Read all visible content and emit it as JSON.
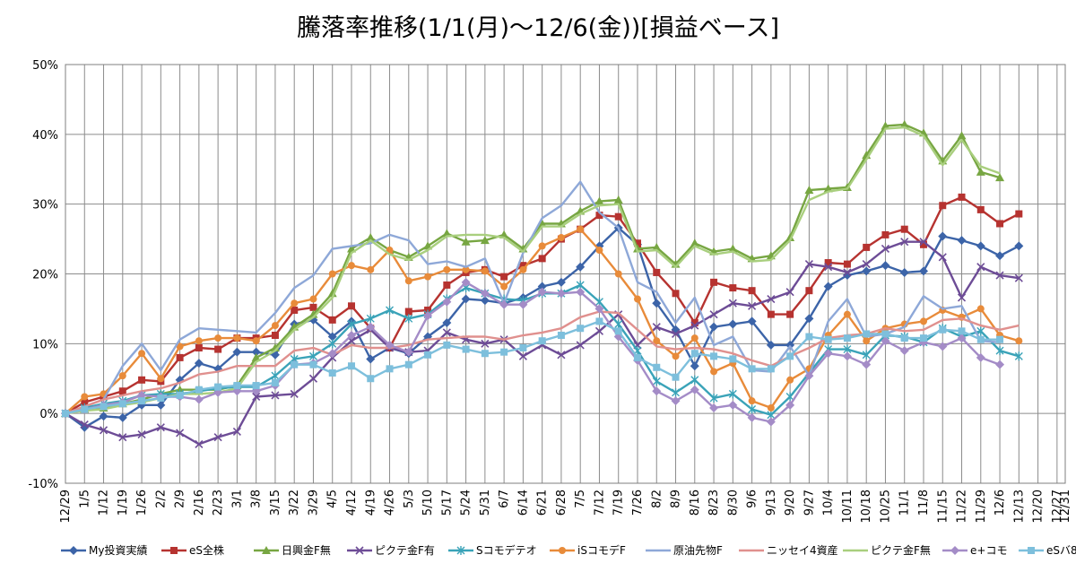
{
  "chart_data": {
    "type": "line",
    "title": "騰落率推移(1/1(月)～12/6(金))[損益ベース]",
    "xlabel": "",
    "ylabel": "",
    "ylim": [
      -0.1,
      0.5
    ],
    "y_ticks": [
      "-10%",
      "0%",
      "10%",
      "20%",
      "30%",
      "40%",
      "50%"
    ],
    "grid": true,
    "legend_position": "bottom",
    "x_tick_labels": [
      "12/29",
      "1/5",
      "1/12",
      "1/19",
      "1/26",
      "2/2",
      "2/9",
      "2/16",
      "2/23",
      "3/1",
      "3/8",
      "3/15",
      "3/22",
      "3/29",
      "4/5",
      "4/12",
      "4/19",
      "4/26",
      "5/3",
      "5/10",
      "5/17",
      "5/24",
      "5/31",
      "6/7",
      "6/14",
      "6/21",
      "6/28",
      "7/5",
      "7/12",
      "7/19",
      "7/26",
      "8/2",
      "8/9",
      "8/16",
      "8/23",
      "8/30",
      "9/6",
      "9/13",
      "9/20",
      "9/27",
      "10/4",
      "10/11",
      "10/18",
      "10/25",
      "11/1",
      "11/8",
      "11/15",
      "11/22",
      "11/29",
      "12/6",
      "12/13",
      "12/20",
      "12/27",
      "12/31"
    ],
    "x_tick_weeks": [
      0,
      1,
      2,
      3,
      4,
      5,
      6,
      7,
      8,
      9,
      10,
      11,
      12,
      13,
      14,
      15,
      16,
      17,
      18,
      19,
      20,
      21,
      22,
      23,
      24,
      25,
      26,
      27,
      28,
      29,
      30,
      31,
      32,
      33,
      34,
      35,
      36,
      37,
      38,
      39,
      40,
      41,
      42,
      43,
      44,
      45,
      46,
      47,
      48,
      49,
      50,
      51,
      52,
      52.43
    ],
    "x_max_week": 52.43,
    "series": [
      {
        "name": "My投資実績",
        "color": "#3c64a8",
        "marker": "diamond",
        "values": [
          0,
          -0.02,
          -0.004,
          -0.006,
          0.012,
          0.012,
          0.048,
          0.072,
          0.064,
          0.088,
          0.088,
          0.084,
          0.128,
          0.134,
          0.11,
          0.132,
          0.078,
          0.094,
          0.086,
          0.11,
          0.13,
          0.164,
          0.162,
          0.158,
          0.166,
          0.182,
          0.188,
          0.21,
          0.24,
          0.266,
          0.242,
          0.158,
          0.12,
          0.068,
          0.124,
          0.128,
          0.132,
          0.098,
          0.098,
          0.136,
          0.182,
          0.198,
          0.204,
          0.212,
          0.202,
          0.204,
          0.254,
          0.248,
          0.24,
          0.226,
          0.24
        ]
      },
      {
        "name": "eS全株",
        "color": "#b63330",
        "marker": "square",
        "values": [
          0,
          0.016,
          0.024,
          0.032,
          0.048,
          0.046,
          0.08,
          0.094,
          0.092,
          0.108,
          0.108,
          0.112,
          0.148,
          0.152,
          0.134,
          0.154,
          0.122,
          0.094,
          0.146,
          0.148,
          0.184,
          0.202,
          0.206,
          0.196,
          0.212,
          0.222,
          0.25,
          0.264,
          0.284,
          0.282,
          0.244,
          0.202,
          0.172,
          0.13,
          0.188,
          0.18,
          0.176,
          0.142,
          0.142,
          0.176,
          0.216,
          0.214,
          0.238,
          0.256,
          0.264,
          0.242,
          0.298,
          0.31,
          0.292,
          0.272,
          0.286
        ]
      },
      {
        "name": "日興金F無",
        "color": "#77a642",
        "marker": "triangle",
        "values": [
          0,
          0.006,
          0.008,
          0.014,
          0.02,
          0.028,
          0.034,
          0.034,
          0.034,
          0.04,
          0.08,
          0.094,
          0.124,
          0.142,
          0.172,
          0.236,
          0.252,
          0.234,
          0.224,
          0.24,
          0.258,
          0.246,
          0.248,
          0.256,
          0.236,
          0.272,
          0.272,
          0.29,
          0.304,
          0.306,
          0.236,
          0.238,
          0.214,
          0.244,
          0.232,
          0.236,
          0.222,
          0.226,
          0.252,
          0.32,
          0.322,
          0.324,
          0.37,
          0.412,
          0.414,
          0.402,
          0.362,
          0.398,
          0.346,
          0.338
        ]
      },
      {
        "name": "ピクテ金F有",
        "color": "#6d4c96",
        "marker": "x",
        "values": [
          0,
          -0.016,
          -0.024,
          -0.034,
          -0.03,
          -0.02,
          -0.028,
          -0.044,
          -0.034,
          -0.026,
          0.024,
          0.026,
          0.028,
          0.05,
          0.08,
          0.104,
          0.12,
          0.094,
          0.088,
          0.09,
          0.116,
          0.106,
          0.1,
          0.106,
          0.082,
          0.098,
          0.084,
          0.098,
          0.118,
          0.142,
          0.098,
          0.124,
          0.114,
          0.126,
          0.142,
          0.158,
          0.154,
          0.164,
          0.174,
          0.214,
          0.21,
          0.202,
          0.214,
          0.236,
          0.246,
          0.246,
          0.224,
          0.166,
          0.21,
          0.198,
          0.194
        ]
      },
      {
        "name": "Sコモデテオ",
        "color": "#3aa3b8",
        "marker": "star",
        "values": [
          0,
          0.008,
          0.014,
          0.018,
          0.026,
          0.028,
          0.028,
          0.032,
          0.036,
          0.038,
          0.038,
          0.054,
          0.078,
          0.082,
          0.1,
          0.128,
          0.136,
          0.148,
          0.136,
          0.142,
          0.164,
          0.18,
          0.172,
          0.164,
          0.162,
          0.172,
          0.172,
          0.184,
          0.16,
          0.128,
          0.09,
          0.046,
          0.03,
          0.048,
          0.022,
          0.028,
          0.006,
          -0.002,
          0.024,
          0.058,
          0.092,
          0.092,
          0.084,
          0.112,
          0.11,
          0.102,
          0.122,
          0.11,
          0.118,
          0.09,
          0.082
        ]
      },
      {
        "name": "iSコモデF",
        "color": "#e88b3a",
        "marker": "circle",
        "values": [
          0,
          0.024,
          0.028,
          0.054,
          0.086,
          0.05,
          0.096,
          0.104,
          0.108,
          0.108,
          0.104,
          0.126,
          0.158,
          0.164,
          0.2,
          0.212,
          0.206,
          0.234,
          0.19,
          0.196,
          0.206,
          0.206,
          0.204,
          0.182,
          0.206,
          0.24,
          0.252,
          0.264,
          0.234,
          0.2,
          0.164,
          0.104,
          0.082,
          0.108,
          0.06,
          0.072,
          0.018,
          0.008,
          0.048,
          0.064,
          0.112,
          0.142,
          0.104,
          0.122,
          0.128,
          0.132,
          0.148,
          0.138,
          0.15,
          0.112,
          0.104
        ]
      },
      {
        "name": "原油先物F",
        "color": "#8ea8d8",
        "marker": "line",
        "values": [
          0,
          0.01,
          0.02,
          0.068,
          0.1,
          0.062,
          0.106,
          0.122,
          0.12,
          0.118,
          0.116,
          0.144,
          0.18,
          0.198,
          0.236,
          0.24,
          0.244,
          0.256,
          0.248,
          0.214,
          0.218,
          0.21,
          0.222,
          0.158,
          0.23,
          0.28,
          0.298,
          0.332,
          0.288,
          0.266,
          0.188,
          0.174,
          0.13,
          0.166,
          0.098,
          0.11,
          0.062,
          0.06,
          0.096,
          0.054,
          0.132,
          0.164,
          0.11,
          0.114,
          0.124,
          0.168,
          0.15,
          0.154,
          0.104,
          0.102
        ]
      },
      {
        "name": "ニッセイ4資産",
        "color": "#e0908e",
        "marker": "line",
        "values": [
          0,
          0.01,
          0.02,
          0.026,
          0.032,
          0.036,
          0.044,
          0.056,
          0.06,
          0.068,
          0.068,
          0.068,
          0.09,
          0.094,
          0.084,
          0.098,
          0.094,
          0.094,
          0.098,
          0.106,
          0.108,
          0.11,
          0.11,
          0.106,
          0.112,
          0.116,
          0.122,
          0.138,
          0.146,
          0.144,
          0.12,
          0.096,
          0.092,
          0.094,
          0.092,
          0.086,
          0.076,
          0.068,
          0.082,
          0.094,
          0.108,
          0.112,
          0.114,
          0.122,
          0.118,
          0.12,
          0.134,
          0.136,
          0.126,
          0.12,
          0.126
        ]
      },
      {
        "name": "ピクテ金F無",
        "color": "#a9cf7e",
        "marker": "line",
        "values": [
          0,
          0.004,
          0.006,
          0.012,
          0.016,
          0.022,
          0.028,
          0.028,
          0.03,
          0.036,
          0.074,
          0.09,
          0.12,
          0.138,
          0.166,
          0.23,
          0.248,
          0.228,
          0.22,
          0.234,
          0.254,
          0.256,
          0.256,
          0.252,
          0.232,
          0.268,
          0.268,
          0.286,
          0.298,
          0.3,
          0.232,
          0.234,
          0.21,
          0.24,
          0.228,
          0.232,
          0.218,
          0.22,
          0.248,
          0.306,
          0.318,
          0.322,
          0.364,
          0.408,
          0.41,
          0.398,
          0.356,
          0.392,
          0.354,
          0.344
        ]
      },
      {
        "name": "e+コモ",
        "color": "#a48cc7",
        "marker": "diamond",
        "values": [
          0,
          0.006,
          0.012,
          0.016,
          0.026,
          0.024,
          0.024,
          0.02,
          0.03,
          0.032,
          0.032,
          0.04,
          0.07,
          0.072,
          0.086,
          0.112,
          0.124,
          0.098,
          0.088,
          0.14,
          0.16,
          0.188,
          0.172,
          0.156,
          0.156,
          0.174,
          0.172,
          0.174,
          0.15,
          0.11,
          0.076,
          0.032,
          0.018,
          0.034,
          0.008,
          0.012,
          -0.006,
          -0.012,
          0.012,
          0.054,
          0.086,
          0.082,
          0.07,
          0.104,
          0.09,
          0.102,
          0.096,
          0.108,
          0.08,
          0.07
        ]
      },
      {
        "name": "eSバ8",
        "color": "#7dbfdc",
        "marker": "square",
        "values": [
          0,
          0.006,
          0.01,
          0.014,
          0.018,
          0.022,
          0.026,
          0.034,
          0.038,
          0.04,
          0.04,
          0.044,
          0.07,
          0.07,
          0.058,
          0.068,
          0.05,
          0.064,
          0.07,
          0.084,
          0.098,
          0.092,
          0.086,
          0.088,
          0.094,
          0.104,
          0.112,
          0.122,
          0.132,
          0.118,
          0.08,
          0.066,
          0.052,
          0.086,
          0.082,
          0.078,
          0.064,
          0.064,
          0.082,
          0.11,
          0.106,
          0.108,
          0.114,
          0.114,
          0.108,
          0.108,
          0.12,
          0.118,
          0.106,
          0.106
        ]
      }
    ]
  }
}
